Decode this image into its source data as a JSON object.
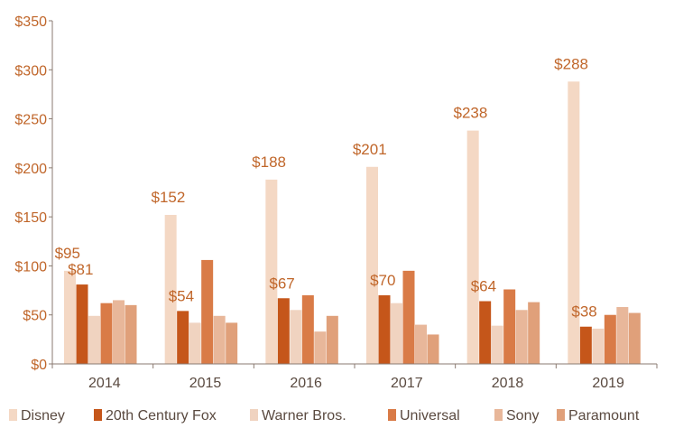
{
  "chart_data": {
    "type": "bar",
    "title": "",
    "xlabel": "",
    "ylabel": "",
    "ylim": [
      0,
      350
    ],
    "ytick_step": 50,
    "ytick_labels": [
      "$0",
      "$50",
      "$100",
      "$150",
      "$200",
      "$250",
      "$300",
      "$350"
    ],
    "categories": [
      "2014",
      "2015",
      "2016",
      "2017",
      "2018",
      "2019"
    ],
    "grid": false,
    "legend_position": "bottom",
    "series": [
      {
        "name": "Disney",
        "color": "#f4d8c4",
        "values": [
          95,
          152,
          188,
          201,
          238,
          288
        ],
        "labels": [
          "$95",
          "$152",
          "$188",
          "$201",
          "$238",
          "$288"
        ]
      },
      {
        "name": "20th Century Fox",
        "color": "#c5561a",
        "values": [
          81,
          54,
          67,
          70,
          64,
          38
        ],
        "labels": [
          "$81",
          "$54",
          "$67",
          "$70",
          "$64",
          "$38"
        ]
      },
      {
        "name": "Warner Bros.",
        "color": "#f0d3c0",
        "values": [
          49,
          42,
          55,
          62,
          39,
          36
        ],
        "labels": null
      },
      {
        "name": "Universal",
        "color": "#d97b47",
        "values": [
          62,
          106,
          70,
          95,
          76,
          50
        ],
        "labels": null
      },
      {
        "name": "Sony",
        "color": "#e8b79a",
        "values": [
          65,
          49,
          33,
          40,
          55,
          58
        ],
        "labels": null
      },
      {
        "name": "Paramount",
        "color": "#e0a07a",
        "values": [
          60,
          42,
          49,
          30,
          63,
          52
        ],
        "labels": null
      }
    ]
  }
}
